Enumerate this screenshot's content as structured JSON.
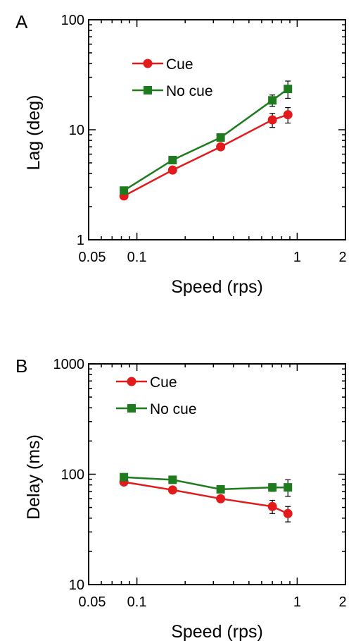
{
  "chart_data": [
    {
      "type": "line",
      "panel_label": "A",
      "xlabel": "Speed (rps)",
      "ylabel": "Lag (deg)",
      "xscale": "log",
      "yscale": "log",
      "xlim": [
        0.05,
        2
      ],
      "ylim": [
        1,
        100
      ],
      "x_ticks": [
        0.05,
        0.1,
        1,
        2
      ],
      "x_tick_labels": [
        "0.05",
        "0.1",
        "1",
        "2"
      ],
      "y_ticks": [
        1,
        10,
        100
      ],
      "y_tick_labels": [
        "1",
        "10",
        "100"
      ],
      "grid": false,
      "legend_position": "top-left",
      "x": [
        0.083,
        0.167,
        0.333,
        0.7,
        0.875
      ],
      "series": [
        {
          "name": "Cue",
          "color": "#e31a1c",
          "marker": "circle",
          "values": [
            2.5,
            4.3,
            7.0,
            12.3,
            13.7
          ],
          "error": [
            null,
            null,
            null,
            1.8,
            2.2
          ]
        },
        {
          "name": "No cue",
          "color": "#1e7b1e",
          "marker": "square",
          "values": [
            2.8,
            5.3,
            8.5,
            18.5,
            23.5
          ],
          "error": [
            null,
            null,
            null,
            2.2,
            4.2
          ]
        }
      ]
    },
    {
      "type": "line",
      "panel_label": "B",
      "xlabel": "Speed (rps)",
      "ylabel": "Delay (ms)",
      "xscale": "log",
      "yscale": "log",
      "xlim": [
        0.05,
        2
      ],
      "ylim": [
        10,
        1000
      ],
      "x_ticks": [
        0.05,
        0.1,
        1,
        2
      ],
      "x_tick_labels": [
        "0.05",
        "0.1",
        "1",
        "2"
      ],
      "y_ticks": [
        10,
        100,
        1000
      ],
      "y_tick_labels": [
        "10",
        "100",
        "1000"
      ],
      "grid": false,
      "legend_position": "top-left",
      "x": [
        0.083,
        0.167,
        0.333,
        0.7,
        0.875
      ],
      "series": [
        {
          "name": "Cue",
          "color": "#e31a1c",
          "marker": "circle",
          "values": [
            85,
            72,
            60,
            51,
            44
          ],
          "error": [
            null,
            null,
            null,
            7,
            7
          ]
        },
        {
          "name": "No cue",
          "color": "#1e7b1e",
          "marker": "square",
          "values": [
            94,
            89,
            73,
            76,
            76
          ],
          "error": [
            null,
            null,
            null,
            6,
            13
          ]
        }
      ]
    }
  ]
}
